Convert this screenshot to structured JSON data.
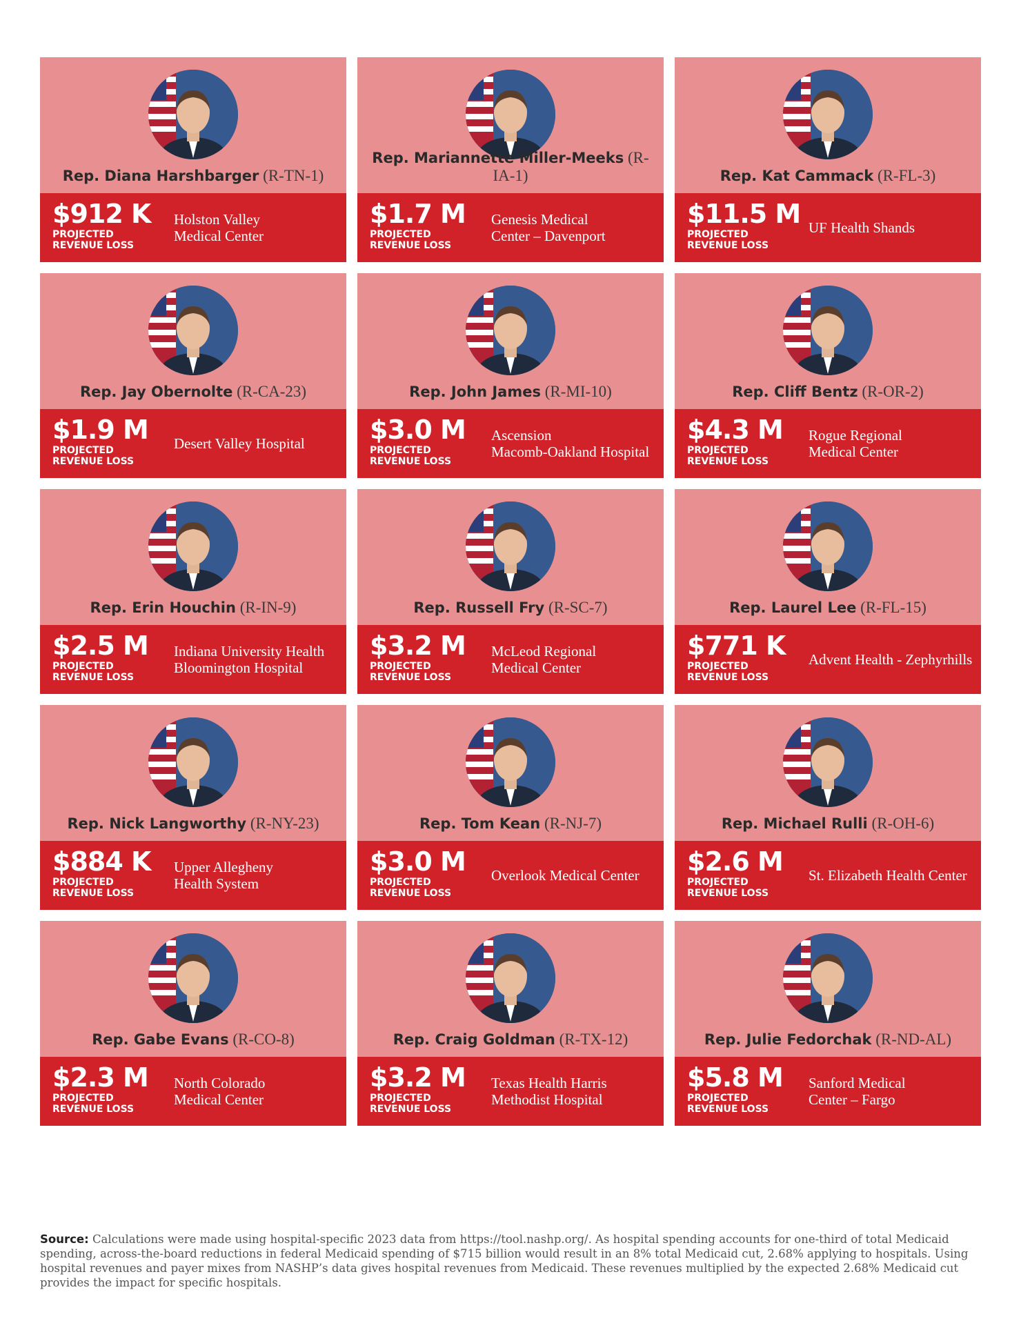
{
  "labels": {
    "projected_line1": "PROJECTED",
    "projected_line2": "REVENUE LOSS"
  },
  "colors": {
    "card_top": "#e89091",
    "card_bottom": "#d1222a",
    "text_dark": "#2a2a2a"
  },
  "cards": [
    {
      "name": "Rep. Diana Harshbarger",
      "district": "(R-TN-1)",
      "amount": "$912 K",
      "hospital": [
        "Holston Valley",
        "Medical Center"
      ]
    },
    {
      "name": "Rep. Mariannette Miller-Meeks",
      "district": "(R-IA-1)",
      "amount": "$1.7 M",
      "hospital": [
        "Genesis Medical",
        "Center – Davenport"
      ]
    },
    {
      "name": "Rep. Kat Cammack",
      "district": "(R-FL-3)",
      "amount": "$11.5 M",
      "hospital": [
        "UF Health Shands"
      ]
    },
    {
      "name": "Rep. Jay Obernolte",
      "district": "(R-CA-23)",
      "amount": "$1.9 M",
      "hospital": [
        "Desert Valley Hospital"
      ]
    },
    {
      "name": "Rep. John James",
      "district": "(R-MI-10)",
      "amount": "$3.0 M",
      "hospital": [
        "Ascension",
        "Macomb-Oakland Hospital"
      ]
    },
    {
      "name": "Rep. Cliff Bentz",
      "district": "(R-OR-2)",
      "amount": "$4.3 M",
      "hospital": [
        "Rogue Regional",
        "Medical Center"
      ]
    },
    {
      "name": "Rep. Erin Houchin",
      "district": "(R-IN-9)",
      "amount": "$2.5 M",
      "hospital": [
        "Indiana University Health",
        "Bloomington Hospital"
      ]
    },
    {
      "name": "Rep. Russell Fry",
      "district": "(R-SC-7)",
      "amount": "$3.2 M",
      "hospital": [
        "McLeod Regional",
        "Medical Center"
      ]
    },
    {
      "name": "Rep. Laurel Lee",
      "district": "(R-FL-15)",
      "amount": "$771 K",
      "hospital": [
        "Advent Health - Zephyrhills"
      ]
    },
    {
      "name": "Rep. Nick Langworthy",
      "district": "(R-NY-23)",
      "amount": "$884 K",
      "hospital": [
        "Upper Allegheny",
        "Health System"
      ]
    },
    {
      "name": "Rep. Tom Kean",
      "district": "(R-NJ-7)",
      "amount": "$3.0 M",
      "hospital": [
        "Overlook Medical Center"
      ]
    },
    {
      "name": "Rep. Michael Rulli",
      "district": "(R-OH-6)",
      "amount": "$2.6 M",
      "hospital": [
        "St. Elizabeth Health Center"
      ]
    },
    {
      "name": "Rep. Gabe Evans",
      "district": "(R-CO-8)",
      "amount": "$2.3 M",
      "hospital": [
        "North Colorado",
        "Medical Center"
      ]
    },
    {
      "name": "Rep. Craig Goldman",
      "district": "(R-TX-12)",
      "amount": "$3.2 M",
      "hospital": [
        "Texas Health Harris",
        "Methodist Hospital"
      ]
    },
    {
      "name": "Rep. Julie Fedorchak",
      "district": "(R-ND-AL)",
      "amount": "$5.8 M",
      "hospital": [
        "Sanford Medical",
        "Center – Fargo"
      ]
    }
  ],
  "source": {
    "label": "Source:",
    "text": "Calculations were made using hospital-specific 2023 data from https://tool.nashp.org/. As hospital spending accounts for one-third of total Medicaid spending, across-the-board reductions in federal Medicaid spending of $715 billion would result in an 8% total Medicaid cut, 2.68% applying to hospitals. Using hospital revenues and payer mixes from NASHP’s data gives hospital revenues from Medicaid. These revenues multiplied by the expected 2.68% Medicaid cut provides the impact for specific hospitals."
  }
}
